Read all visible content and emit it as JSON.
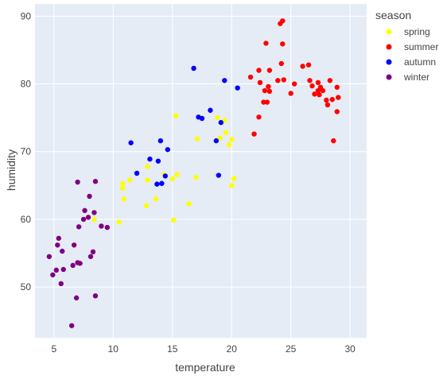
{
  "chart_data": {
    "type": "scatter",
    "xlabel": "temperature",
    "ylabel": "humidity",
    "xlim": [
      3.4,
      31.4
    ],
    "ylim": [
      42.5,
      91.8
    ],
    "x_ticks": [
      5,
      10,
      15,
      20,
      25,
      30
    ],
    "y_ticks": [
      50,
      60,
      70,
      80,
      90
    ],
    "grid": true,
    "legend": {
      "title": "season",
      "placement": "top-right"
    },
    "series": [
      {
        "name": "spring",
        "color": "#ffff00",
        "points": [
          [
            8.4,
            60.0
          ],
          [
            10.5,
            59.6
          ],
          [
            10.9,
            63.0
          ],
          [
            10.8,
            64.6
          ],
          [
            10.8,
            65.3
          ],
          [
            11.4,
            65.8
          ],
          [
            12.8,
            62.0
          ],
          [
            12.9,
            65.8
          ],
          [
            12.9,
            67.8
          ],
          [
            13.6,
            63.0
          ],
          [
            14.3,
            66.6
          ],
          [
            15.0,
            66.0
          ],
          [
            15.1,
            59.9
          ],
          [
            15.3,
            75.3
          ],
          [
            15.4,
            66.6
          ],
          [
            16.4,
            62.3
          ],
          [
            17.0,
            66.2
          ],
          [
            17.1,
            71.9
          ],
          [
            17.5,
            75.0
          ],
          [
            18.8,
            75.0
          ],
          [
            19.4,
            74.6
          ],
          [
            19.5,
            72.8
          ],
          [
            19.8,
            71.0
          ],
          [
            20.0,
            71.8
          ],
          [
            20.0,
            65.0
          ],
          [
            20.2,
            66.0
          ],
          [
            19.0,
            72.0
          ]
        ]
      },
      {
        "name": "summer",
        "color": "#ff0000",
        "points": [
          [
            21.6,
            81.0
          ],
          [
            21.9,
            72.6
          ],
          [
            22.3,
            82.0
          ],
          [
            22.3,
            75.1
          ],
          [
            22.4,
            80.2
          ],
          [
            22.7,
            77.3
          ],
          [
            22.8,
            79.0
          ],
          [
            22.9,
            86.0
          ],
          [
            23.0,
            77.3
          ],
          [
            23.1,
            79.6
          ],
          [
            23.2,
            82.0
          ],
          [
            23.2,
            78.9
          ],
          [
            23.9,
            80.5
          ],
          [
            24.1,
            88.9
          ],
          [
            24.2,
            83.0
          ],
          [
            24.3,
            89.3
          ],
          [
            24.3,
            85.9
          ],
          [
            24.4,
            80.6
          ],
          [
            25.0,
            78.6
          ],
          [
            25.3,
            80.0
          ],
          [
            26.0,
            82.6
          ],
          [
            26.5,
            82.8
          ],
          [
            26.6,
            80.5
          ],
          [
            26.8,
            79.7
          ],
          [
            27.0,
            78.5
          ],
          [
            27.3,
            80.2
          ],
          [
            27.3,
            79.0
          ],
          [
            27.4,
            78.4
          ],
          [
            27.5,
            79.5
          ],
          [
            27.7,
            79.0
          ],
          [
            28.0,
            77.6
          ],
          [
            28.1,
            76.9
          ],
          [
            28.3,
            80.5
          ],
          [
            28.5,
            77.7
          ],
          [
            28.6,
            71.6
          ],
          [
            28.9,
            79.5
          ],
          [
            29.0,
            78.0
          ],
          [
            28.9,
            75.9
          ]
        ]
      },
      {
        "name": "autumn",
        "color": "#0000ff",
        "points": [
          [
            11.5,
            71.3
          ],
          [
            12.0,
            66.8
          ],
          [
            13.1,
            68.9
          ],
          [
            13.7,
            65.2
          ],
          [
            13.8,
            68.6
          ],
          [
            14.0,
            71.6
          ],
          [
            14.1,
            65.3
          ],
          [
            14.4,
            66.4
          ],
          [
            14.6,
            70.3
          ],
          [
            16.8,
            82.3
          ],
          [
            17.2,
            75.1
          ],
          [
            17.5,
            74.9
          ],
          [
            18.2,
            76.1
          ],
          [
            18.7,
            71.6
          ],
          [
            18.9,
            66.5
          ],
          [
            19.1,
            74.3
          ],
          [
            19.4,
            80.5
          ],
          [
            20.5,
            79.4
          ]
        ]
      },
      {
        "name": "winter",
        "color": "#800080",
        "points": [
          [
            4.6,
            54.5
          ],
          [
            4.9,
            51.8
          ],
          [
            5.2,
            52.5
          ],
          [
            5.3,
            56.2
          ],
          [
            5.4,
            57.2
          ],
          [
            5.6,
            50.5
          ],
          [
            5.7,
            55.3
          ],
          [
            5.8,
            52.6
          ],
          [
            6.5,
            44.3
          ],
          [
            6.6,
            53.2
          ],
          [
            6.7,
            56.2
          ],
          [
            6.9,
            48.4
          ],
          [
            7.0,
            65.5
          ],
          [
            7.0,
            53.6
          ],
          [
            7.1,
            58.9
          ],
          [
            7.2,
            53.5
          ],
          [
            7.5,
            60.0
          ],
          [
            7.6,
            61.3
          ],
          [
            7.9,
            60.3
          ],
          [
            8.0,
            63.4
          ],
          [
            8.1,
            54.5
          ],
          [
            8.3,
            55.2
          ],
          [
            8.4,
            61.0
          ],
          [
            8.5,
            48.7
          ],
          [
            8.5,
            65.6
          ],
          [
            9.0,
            59.0
          ],
          [
            9.5,
            58.8
          ]
        ]
      }
    ]
  }
}
